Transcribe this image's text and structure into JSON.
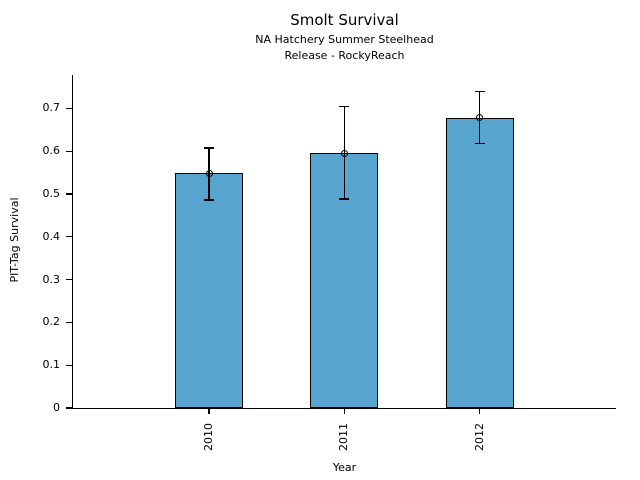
{
  "figure": {
    "background": "#ffffff"
  },
  "chart_data": {
    "type": "bar",
    "title": "Smolt Survival",
    "subtitle1": "NA Hatchery Summer Steelhead",
    "subtitle2": "Release - RockyReach",
    "xlabel": "Year",
    "ylabel": "PIT-Tag Survival",
    "categories": [
      "2010",
      "2011",
      "2012"
    ],
    "values": [
      0.548,
      0.595,
      0.678
    ],
    "error_low": [
      0.486,
      0.488,
      0.618
    ],
    "error_high": [
      0.607,
      0.704,
      0.74
    ],
    "ylim": [
      0,
      0.777
    ],
    "yticks": [
      0,
      0.1,
      0.2,
      0.3,
      0.4,
      0.5,
      0.6,
      0.7
    ],
    "ytick_labels": [
      "0",
      "0.1",
      "0.2",
      "0.3",
      "0.4",
      "0.5",
      "0.6",
      "0.7"
    ],
    "grid": false,
    "legend": false,
    "marker": "open-circle",
    "bar_color": "#57A5CF",
    "bar_edge_color": "#000000",
    "error_color": "#000000"
  }
}
